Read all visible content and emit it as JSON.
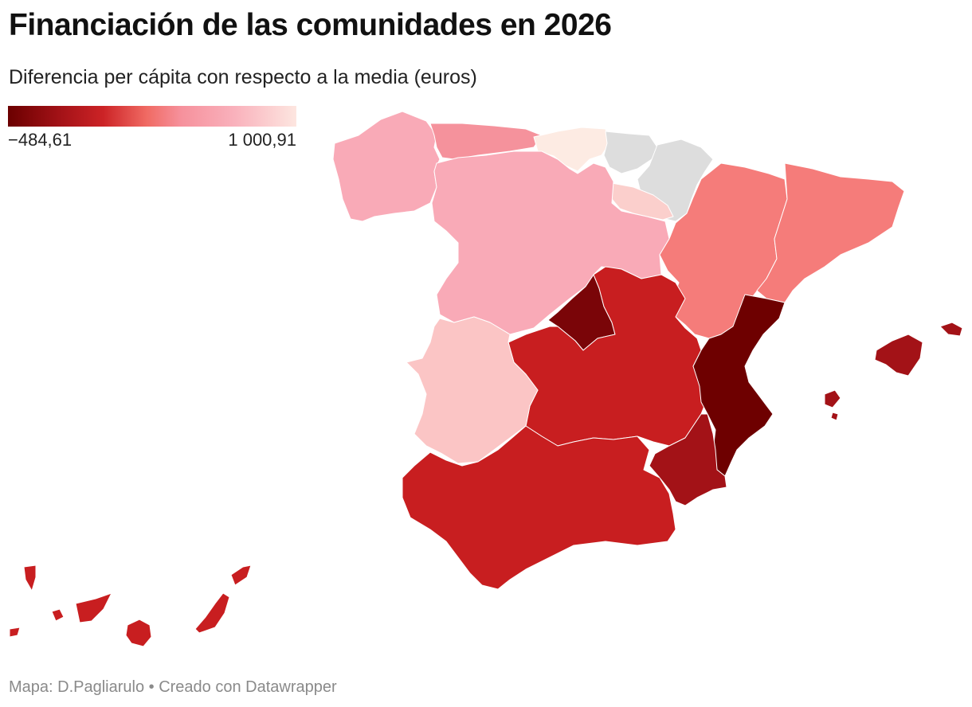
{
  "header": {
    "title": "Financiación de las comunidades en 2026",
    "subtitle": "Diferencia per cápita con respecto a la media (euros)"
  },
  "legend": {
    "min_label": "−484,61",
    "max_label": "1 000,91",
    "color_min": "#6b0000",
    "color_max": "#fde6e0"
  },
  "regions": [
    {
      "name": "Galicia",
      "color": "#f9aab7"
    },
    {
      "name": "Asturias",
      "color": "#f5929c"
    },
    {
      "name": "Cantabria",
      "color": "#fdebe3"
    },
    {
      "name": "País Vasco",
      "color": "#dddddd"
    },
    {
      "name": "Navarra",
      "color": "#dddddd"
    },
    {
      "name": "La Rioja",
      "color": "#fbcfcc"
    },
    {
      "name": "Castilla y León",
      "color": "#f9aab7"
    },
    {
      "name": "Aragón",
      "color": "#f57c7a"
    },
    {
      "name": "Cataluña",
      "color": "#f57c7a"
    },
    {
      "name": "Madrid",
      "color": "#7a0508"
    },
    {
      "name": "Castilla-La Mancha",
      "color": "#c81e20"
    },
    {
      "name": "Comunidad Valenciana",
      "color": "#6e0000"
    },
    {
      "name": "Extremadura",
      "color": "#fbc5c5"
    },
    {
      "name": "Andalucía",
      "color": "#c81e20"
    },
    {
      "name": "Región de Murcia",
      "color": "#a31217"
    },
    {
      "name": "Islas Baleares",
      "color": "#a31217"
    },
    {
      "name": "Canarias",
      "color": "#c81e20"
    }
  ],
  "footer": {
    "credit": "Mapa: D.Pagliarulo • Creado con Datawrapper"
  }
}
